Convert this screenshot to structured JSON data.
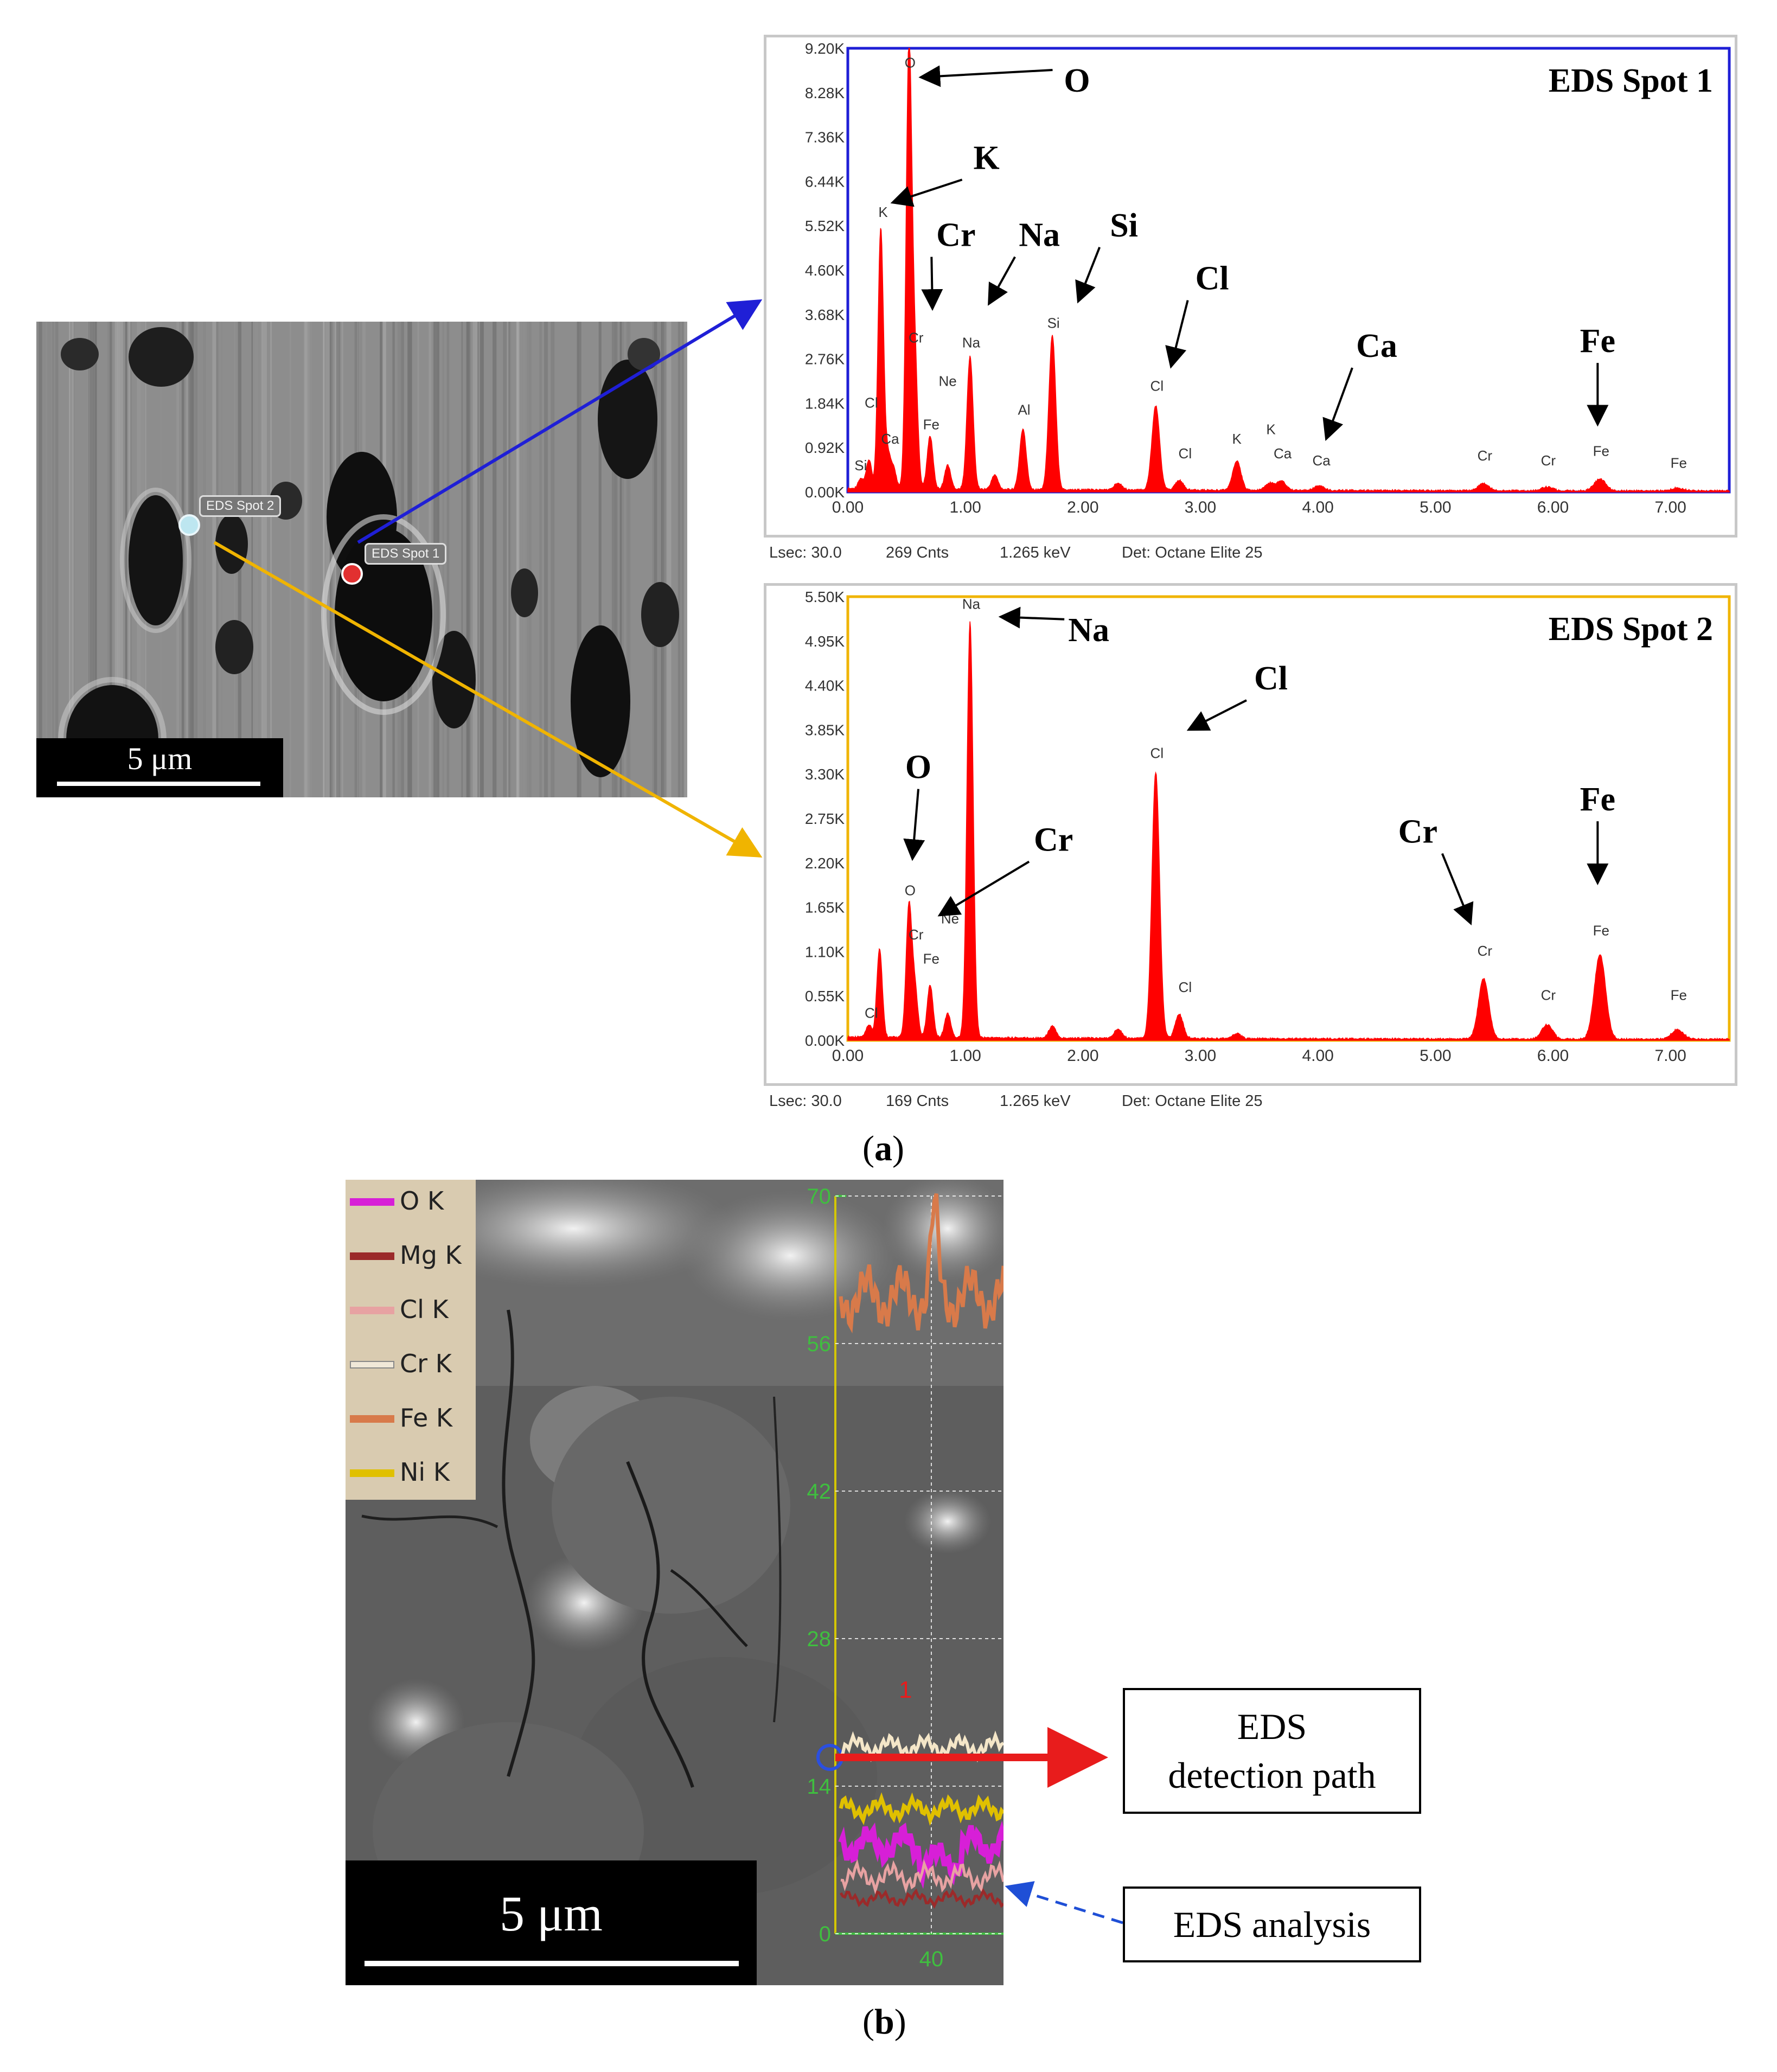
{
  "figure_a": {
    "caption_label": "a",
    "sem": {
      "spot1_label": "EDS Spot 1",
      "spot2_label": "EDS Spot 2",
      "scale_label": "5 μm"
    },
    "chart_data": [
      {
        "type": "area",
        "title": "EDS Spot 1",
        "frame_color": "#1f1fd6",
        "series_color": "#ff0000",
        "x_ticks": [
          "0.00",
          "1.00",
          "2.00",
          "3.00",
          "4.00",
          "5.00",
          "6.00",
          "7.00"
        ],
        "y_ticks": [
          "0.00K",
          "0.92K",
          "1.84K",
          "2.76K",
          "3.68K",
          "4.60K",
          "5.52K",
          "6.44K",
          "7.36K",
          "8.28K",
          "9.20K"
        ],
        "xlim": [
          0,
          7.5
        ],
        "ylim": [
          0,
          9200
        ],
        "peaks": [
          {
            "x": 0.11,
            "y": 200
          },
          {
            "x": 0.18,
            "y": 600
          },
          {
            "x": 0.28,
            "y": 5400
          },
          {
            "x": 0.34,
            "y": 700
          },
          {
            "x": 0.39,
            "y": 400
          },
          {
            "x": 0.52,
            "y": 9100
          },
          {
            "x": 0.57,
            "y": 2600
          },
          {
            "x": 0.7,
            "y": 1100
          },
          {
            "x": 0.85,
            "y": 500
          },
          {
            "x": 1.04,
            "y": 2750
          },
          {
            "x": 1.25,
            "y": 300
          },
          {
            "x": 1.49,
            "y": 1250
          },
          {
            "x": 1.74,
            "y": 3200
          },
          {
            "x": 2.3,
            "y": 150
          },
          {
            "x": 2.62,
            "y": 1750
          },
          {
            "x": 2.82,
            "y": 200
          },
          {
            "x": 3.31,
            "y": 600
          },
          {
            "x": 3.59,
            "y": 150
          },
          {
            "x": 3.69,
            "y": 200
          },
          {
            "x": 4.01,
            "y": 100
          },
          {
            "x": 5.41,
            "y": 150
          },
          {
            "x": 5.95,
            "y": 80
          },
          {
            "x": 6.4,
            "y": 250
          },
          {
            "x": 7.06,
            "y": 60
          }
        ],
        "peak_labels": [
          {
            "text": "Si",
            "x": 0.11,
            "y": 450
          },
          {
            "text": "Cl",
            "x": 0.2,
            "y": 1750
          },
          {
            "text": "Ca",
            "x": 0.36,
            "y": 1000
          },
          {
            "text": "K",
            "x": 0.3,
            "y": 5700
          },
          {
            "text": "O",
            "x": 0.53,
            "y": 8800
          },
          {
            "text": "Cr",
            "x": 0.58,
            "y": 3100
          },
          {
            "text": "Fe",
            "x": 0.71,
            "y": 1300
          },
          {
            "text": "Ne",
            "x": 0.85,
            "y": 2200
          },
          {
            "text": "Na",
            "x": 1.05,
            "y": 3000
          },
          {
            "text": "Al",
            "x": 1.5,
            "y": 1600
          },
          {
            "text": "Si",
            "x": 1.75,
            "y": 3400
          },
          {
            "text": "Cl",
            "x": 2.63,
            "y": 2100
          },
          {
            "text": "Cl",
            "x": 2.87,
            "y": 700
          },
          {
            "text": "K",
            "x": 3.31,
            "y": 1000
          },
          {
            "text": "K",
            "x": 3.6,
            "y": 1200
          },
          {
            "text": "Ca",
            "x": 3.7,
            "y": 700
          },
          {
            "text": "Ca",
            "x": 4.03,
            "y": 550
          },
          {
            "text": "Cr",
            "x": 5.42,
            "y": 650
          },
          {
            "text": "Cr",
            "x": 5.96,
            "y": 550
          },
          {
            "text": "Fe",
            "x": 6.41,
            "y": 750
          },
          {
            "text": "Fe",
            "x": 7.07,
            "y": 500
          }
        ],
        "annotations": [
          {
            "text": "O",
            "x": 1.95,
            "y": 8300,
            "ax": 0.62,
            "ay": 8600
          },
          {
            "text": "K",
            "x": 1.18,
            "y": 6700,
            "ax": 0.38,
            "ay": 6000
          },
          {
            "text": "Cr",
            "x": 0.92,
            "y": 5100,
            "ax": 0.72,
            "ay": 3800
          },
          {
            "text": "Na",
            "x": 1.63,
            "y": 5100,
            "ax": 1.2,
            "ay": 3900
          },
          {
            "text": "Si",
            "x": 2.35,
            "y": 5300,
            "ax": 1.96,
            "ay": 3950
          },
          {
            "text": "Cl",
            "x": 3.1,
            "y": 4200,
            "ax": 2.75,
            "ay": 2600
          },
          {
            "text": "Ca",
            "x": 4.5,
            "y": 2800,
            "ax": 4.07,
            "ay": 1100
          },
          {
            "text": "Fe",
            "x": 6.38,
            "y": 2900,
            "ax": 6.38,
            "ay": 1400
          }
        ],
        "footer": {
          "lsec": "Lsec: 30.0",
          "cnts": "269 Cnts",
          "kev": "1.265 keV",
          "det": "Det: Octane Elite 25"
        }
      },
      {
        "type": "area",
        "title": "EDS Spot 2",
        "frame_color": "#f0b400",
        "series_color": "#ff0000",
        "x_ticks": [
          "0.00",
          "1.00",
          "2.00",
          "3.00",
          "4.00",
          "5.00",
          "6.00",
          "7.00"
        ],
        "y_ticks": [
          "0.00K",
          "0.55K",
          "1.10K",
          "1.65K",
          "2.20K",
          "2.75K",
          "3.30K",
          "3.85K",
          "4.40K",
          "4.95K",
          "5.50K"
        ],
        "xlim": [
          0,
          7.5
        ],
        "ylim": [
          0,
          5500
        ],
        "peaks": [
          {
            "x": 0.18,
            "y": 150
          },
          {
            "x": 0.27,
            "y": 1100
          },
          {
            "x": 0.52,
            "y": 1600
          },
          {
            "x": 0.57,
            "y": 600
          },
          {
            "x": 0.7,
            "y": 650
          },
          {
            "x": 0.85,
            "y": 300
          },
          {
            "x": 1.04,
            "y": 5150
          },
          {
            "x": 1.74,
            "y": 150
          },
          {
            "x": 2.3,
            "y": 120
          },
          {
            "x": 2.62,
            "y": 3300
          },
          {
            "x": 2.82,
            "y": 300
          },
          {
            "x": 3.31,
            "y": 60
          },
          {
            "x": 5.41,
            "y": 750
          },
          {
            "x": 5.95,
            "y": 180
          },
          {
            "x": 6.4,
            "y": 1050
          },
          {
            "x": 7.06,
            "y": 120
          }
        ],
        "peak_labels": [
          {
            "text": "Cl",
            "x": 0.2,
            "y": 280
          },
          {
            "text": "O",
            "x": 0.53,
            "y": 1800
          },
          {
            "text": "Cr",
            "x": 0.58,
            "y": 1250
          },
          {
            "text": "Ne",
            "x": 0.87,
            "y": 1450
          },
          {
            "text": "Fe",
            "x": 0.71,
            "y": 950
          },
          {
            "text": "Na",
            "x": 1.05,
            "y": 5350
          },
          {
            "text": "Cl",
            "x": 2.63,
            "y": 3500
          },
          {
            "text": "Cl",
            "x": 2.87,
            "y": 600
          },
          {
            "text": "Cr",
            "x": 5.42,
            "y": 1050
          },
          {
            "text": "Cr",
            "x": 5.96,
            "y": 500
          },
          {
            "text": "Fe",
            "x": 6.41,
            "y": 1300
          },
          {
            "text": "Fe",
            "x": 7.07,
            "y": 500
          }
        ],
        "annotations": [
          {
            "text": "Na",
            "x": 2.05,
            "y": 4950,
            "ax": 1.3,
            "ay": 5250
          },
          {
            "text": "Cl",
            "x": 3.6,
            "y": 4350,
            "ax": 2.9,
            "ay": 3850
          },
          {
            "text": "O",
            "x": 0.6,
            "y": 3250,
            "ax": 0.55,
            "ay": 2250
          },
          {
            "text": "Cr",
            "x": 1.75,
            "y": 2350,
            "ax": 0.78,
            "ay": 1550
          },
          {
            "text": "Cr",
            "x": 4.85,
            "y": 2450,
            "ax": 5.3,
            "ay": 1450
          },
          {
            "text": "Fe",
            "x": 6.38,
            "y": 2850,
            "ax": 6.38,
            "ay": 1950
          }
        ],
        "footer": {
          "lsec": "Lsec: 30.0",
          "cnts": "169 Cnts",
          "kev": "1.265 keV",
          "det": "Det: Octane Elite 25"
        }
      }
    ]
  },
  "figure_b": {
    "caption_label": "b",
    "scale_label": "5 μm",
    "path_label": "1",
    "legend": [
      {
        "label": "O  K",
        "color": "#d71fd7"
      },
      {
        "label": "Mg K",
        "color": "#9b2a2a"
      },
      {
        "label": "Cl K",
        "color": "#e7a2a2"
      },
      {
        "label": "Cr K",
        "color": "#e8ddc8"
      },
      {
        "label": "Fe K",
        "color": "#d87a4a"
      },
      {
        "label": "Ni K",
        "color": "#e0c000"
      }
    ],
    "axis_ticks": [
      "70",
      "56",
      "42",
      "28",
      "14",
      "0"
    ],
    "x_tick": "40",
    "box_path_line1": "EDS",
    "box_path_line2": "detection path",
    "box_analysis": "EDS analysis"
  }
}
